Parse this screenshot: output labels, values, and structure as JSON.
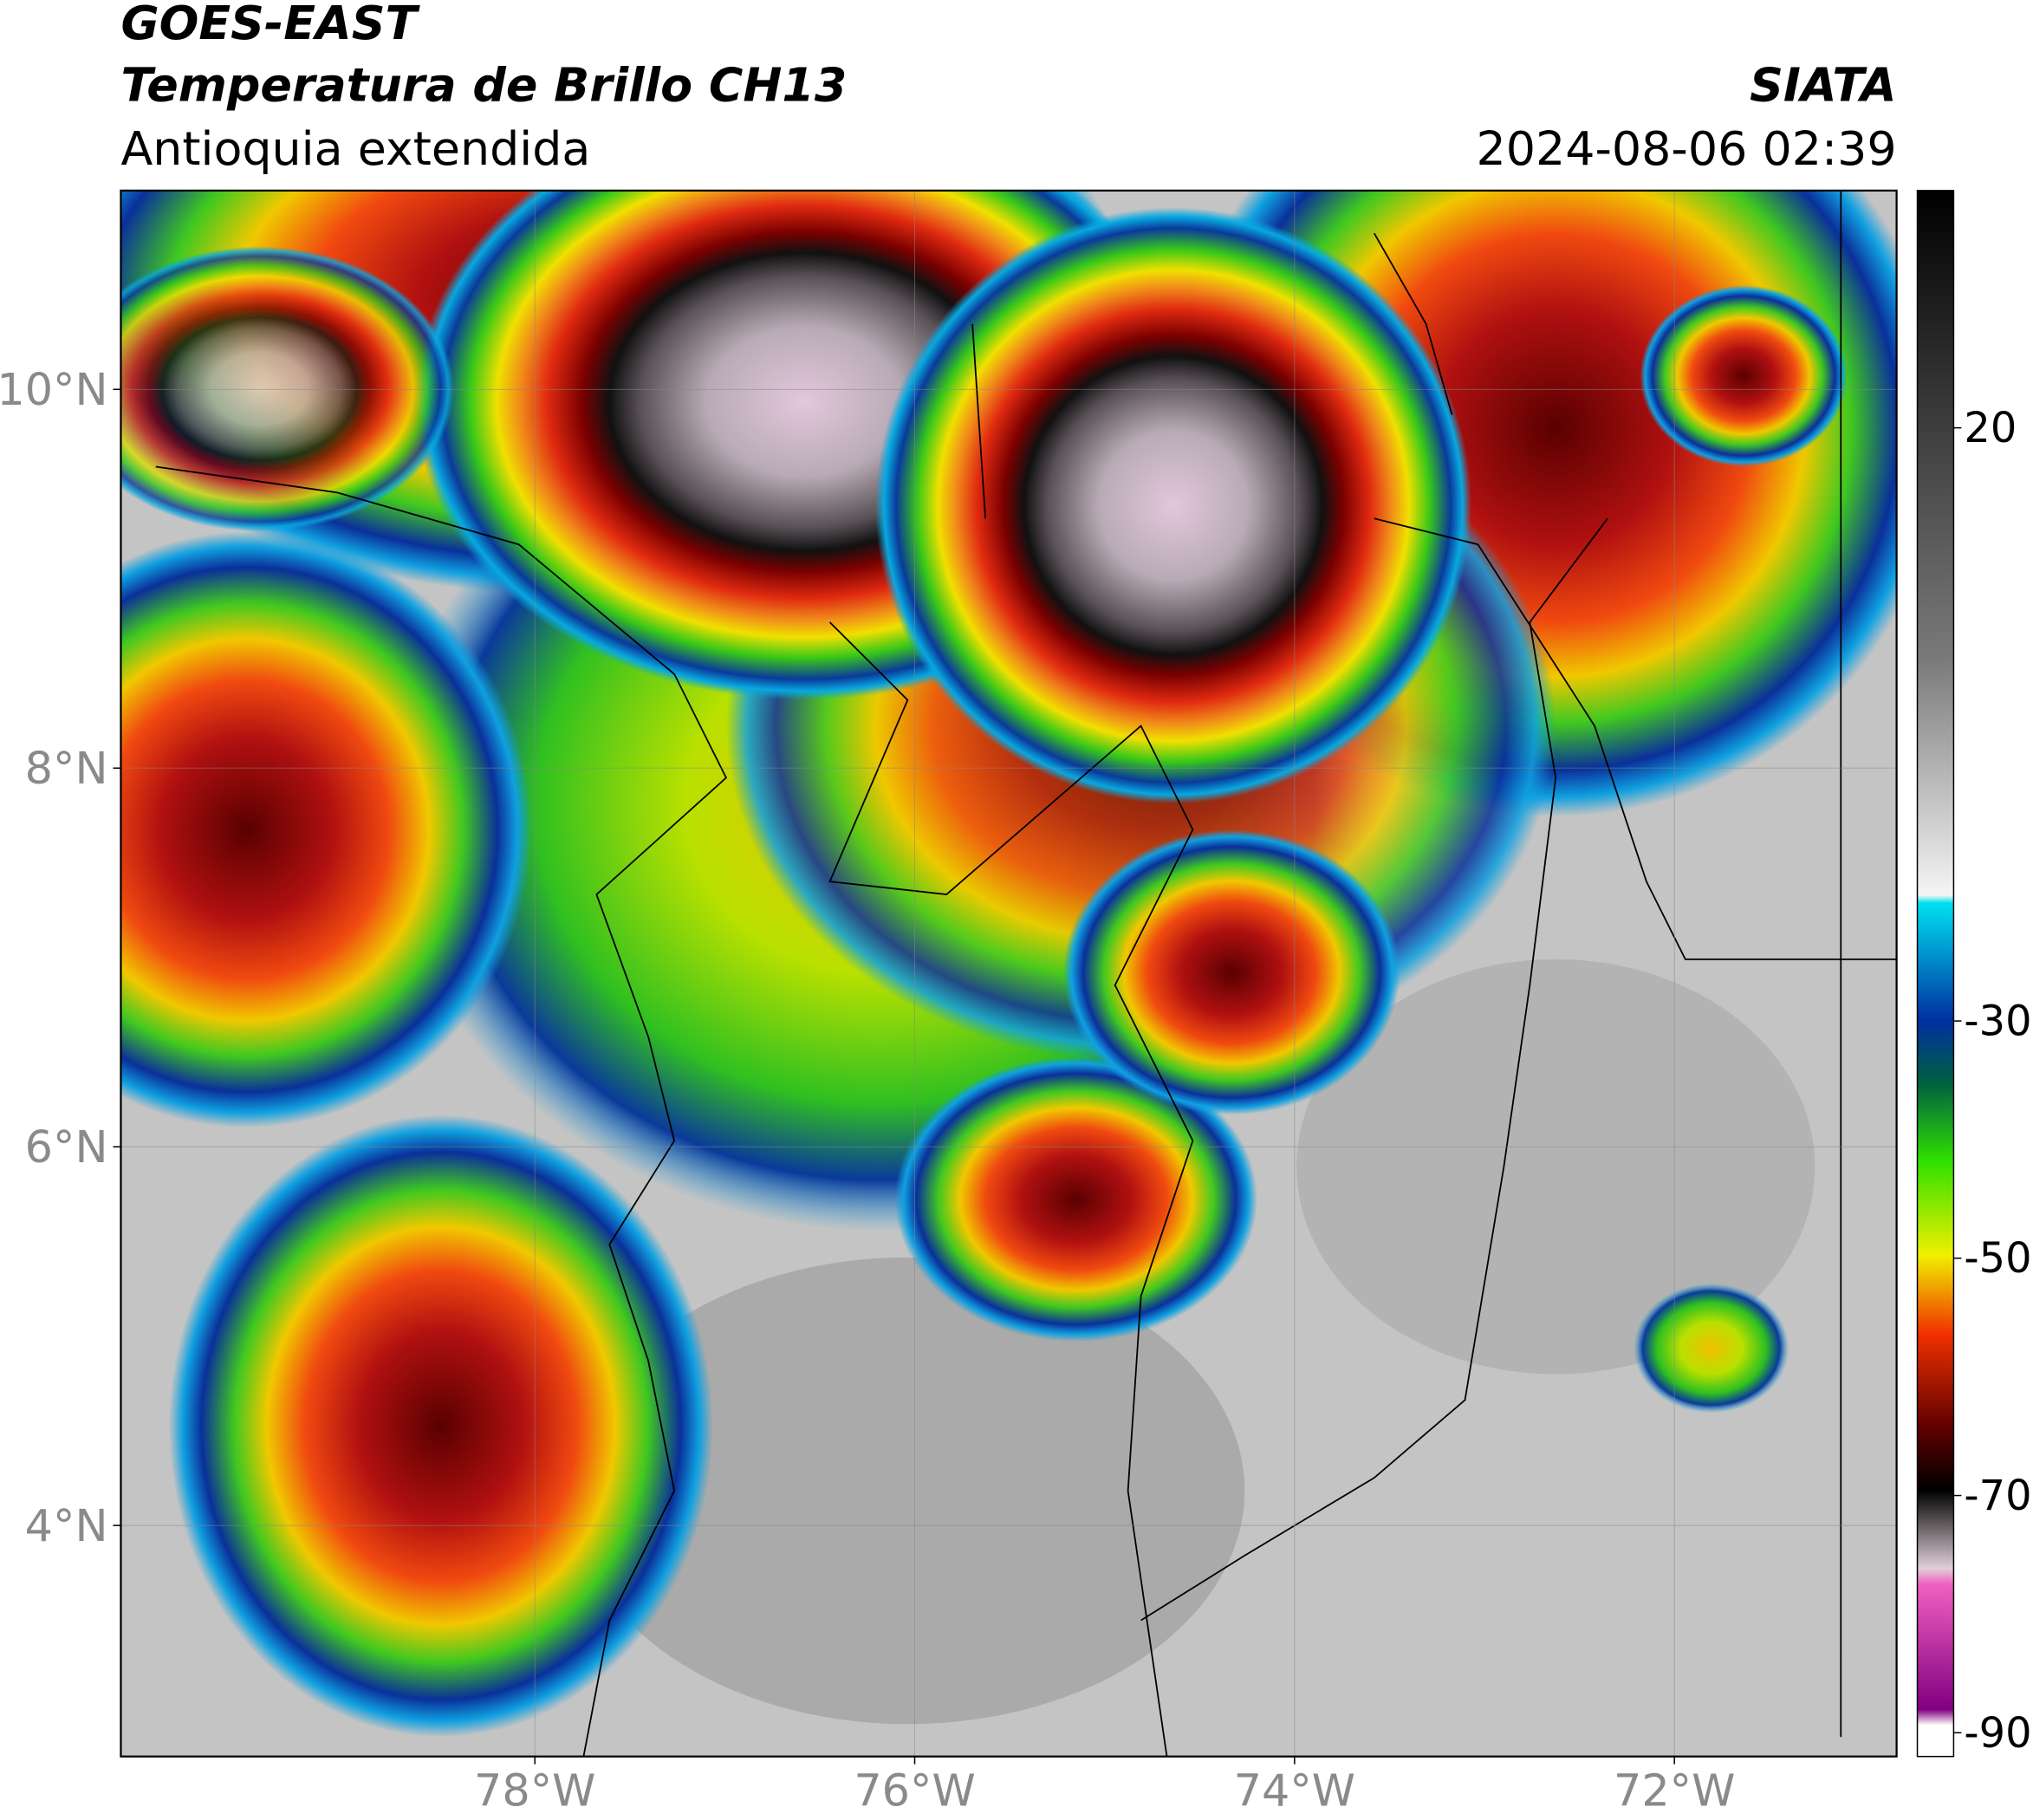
{
  "chart_data": {
    "type": "map",
    "title": "GOES-EAST",
    "subtitle": "Temperatura de Brillo CH13",
    "region": "Antioquia extendida",
    "source": "SIATA",
    "timestamp": "2024-08-06 02:39",
    "xlim": [
      -80.18,
      -70.83
    ],
    "ylim": [
      2.78,
      11.05
    ],
    "xticks": [
      {
        "value": -78,
        "label": "78°W"
      },
      {
        "value": -76,
        "label": "76°W"
      },
      {
        "value": -74,
        "label": "74°W"
      },
      {
        "value": -72,
        "label": "72°W"
      }
    ],
    "yticks": [
      {
        "value": 4,
        "label": "4°N"
      },
      {
        "value": 6,
        "label": "6°N"
      },
      {
        "value": 8,
        "label": "8°N"
      },
      {
        "value": 10,
        "label": "10°N"
      }
    ],
    "grid": true,
    "colorbar": {
      "lim": [
        -92,
        40
      ],
      "ticks": [
        20,
        -30,
        -50,
        -70,
        -90
      ]
    }
  }
}
